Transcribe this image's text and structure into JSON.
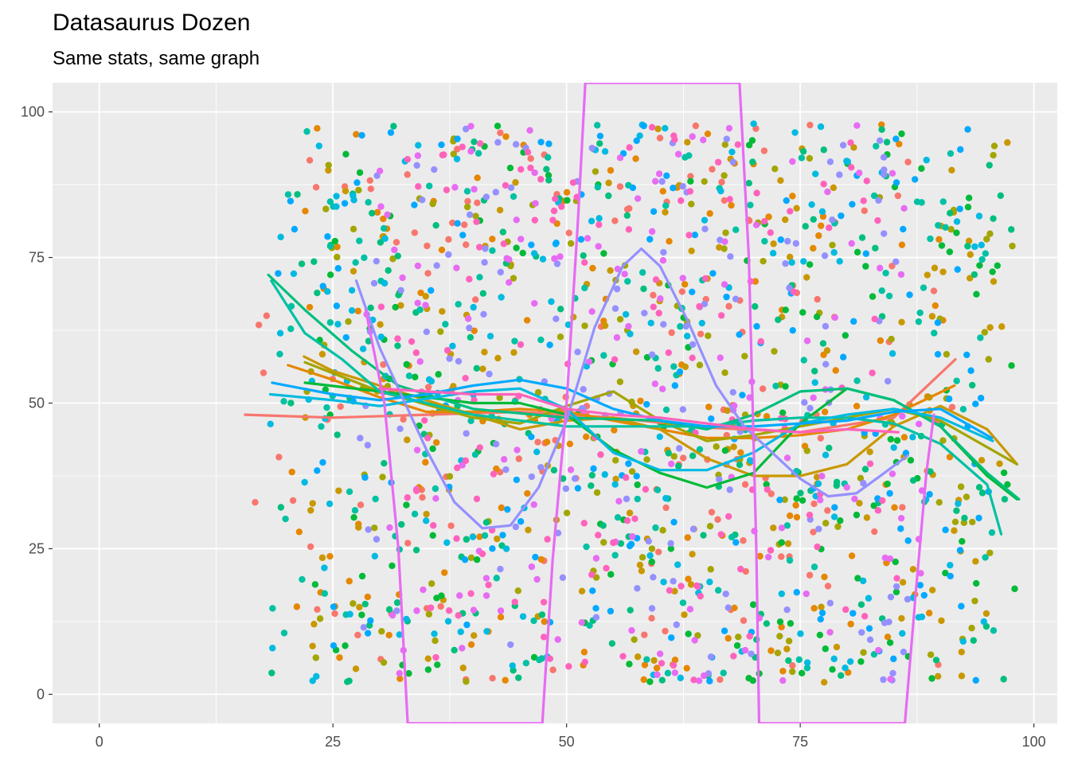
{
  "chart_data": {
    "type": "scatter",
    "title": "Datasaurus Dozen",
    "subtitle": "Same stats, same graph",
    "xlabel": "",
    "ylabel": "",
    "xlim": [
      -5,
      102.5
    ],
    "ylim": [
      -5,
      105
    ],
    "x_ticks": [
      0,
      25,
      50,
      75,
      100
    ],
    "y_ticks": [
      0,
      25,
      50,
      75,
      100
    ],
    "x_tick_labels": [
      "0",
      "25",
      "50",
      "75",
      "100"
    ],
    "y_tick_labels": [
      "0",
      "25",
      "50",
      "75",
      "100"
    ],
    "grid": true,
    "background": "#EBEBEB",
    "legend": "none",
    "smooth_lines": [
      {
        "color": "#F8766D",
        "points": [
          [
            15.6,
            48.0
          ],
          [
            25,
            47.5
          ],
          [
            35,
            48.0
          ],
          [
            45,
            48.5
          ],
          [
            55,
            47.5
          ],
          [
            65,
            45.8
          ],
          [
            75,
            45.0
          ],
          [
            85,
            47.5
          ],
          [
            91.6,
            57.5
          ]
        ]
      },
      {
        "color": "#E58700",
        "points": [
          [
            20.2,
            56.5
          ],
          [
            25,
            54.0
          ],
          [
            30,
            51.0
          ],
          [
            35,
            48.5
          ],
          [
            40,
            48.5
          ],
          [
            45,
            49.0
          ],
          [
            50,
            48.5
          ],
          [
            55,
            47.0
          ],
          [
            60,
            45.5
          ],
          [
            65,
            44.0
          ],
          [
            70,
            44.0
          ],
          [
            75,
            44.5
          ],
          [
            80,
            45.5
          ],
          [
            85,
            48.0
          ],
          [
            91.5,
            53.0
          ]
        ]
      },
      {
        "color": "#C99800",
        "points": [
          [
            21.9,
            58.0
          ],
          [
            25,
            55.5
          ],
          [
            30,
            53.0
          ],
          [
            35,
            50.5
          ],
          [
            40,
            48.0
          ],
          [
            45,
            45.5
          ],
          [
            50,
            47.0
          ],
          [
            55,
            47.5
          ],
          [
            60,
            45.5
          ],
          [
            65,
            40.5
          ],
          [
            70,
            37.5
          ],
          [
            75,
            37.5
          ],
          [
            80,
            39.5
          ],
          [
            85,
            46.0
          ],
          [
            90,
            49.5
          ],
          [
            95,
            45.5
          ],
          [
            98.2,
            39.5
          ]
        ]
      },
      {
        "color": "#A3A500",
        "points": [
          [
            22.0,
            57.0
          ],
          [
            30,
            52.0
          ],
          [
            40,
            47.5
          ],
          [
            45,
            46.5
          ],
          [
            50,
            49.5
          ],
          [
            55,
            52.0
          ],
          [
            60,
            47.0
          ],
          [
            65,
            43.5
          ],
          [
            70,
            44.5
          ],
          [
            75,
            46.0
          ],
          [
            80,
            47.5
          ],
          [
            85,
            49.0
          ],
          [
            90,
            47.0
          ],
          [
            98.2,
            39.5
          ]
        ]
      },
      {
        "color": "#00BA38",
        "points": [
          [
            22.0,
            53.5
          ],
          [
            30,
            52.0
          ],
          [
            40,
            50.0
          ],
          [
            45,
            50.0
          ],
          [
            50,
            48.0
          ],
          [
            55,
            42.0
          ],
          [
            60,
            38.0
          ],
          [
            65,
            35.5
          ],
          [
            70,
            38.0
          ],
          [
            75,
            46.5
          ],
          [
            80,
            52.5
          ],
          [
            85,
            50.5
          ],
          [
            90,
            46.0
          ],
          [
            95,
            37.5
          ],
          [
            98.2,
            33.5
          ]
        ]
      },
      {
        "color": "#00BF7D",
        "points": [
          [
            18.1,
            72.0
          ],
          [
            22,
            66.0
          ],
          [
            27,
            59.0
          ],
          [
            32,
            53.0
          ],
          [
            40,
            49.0
          ],
          [
            50,
            47.5
          ],
          [
            60,
            47.0
          ],
          [
            65,
            45.5
          ],
          [
            70,
            48.0
          ],
          [
            75,
            52.0
          ],
          [
            80,
            52.5
          ],
          [
            85,
            50.5
          ],
          [
            90,
            46.0
          ],
          [
            95,
            38.0
          ],
          [
            98.4,
            33.5
          ]
        ]
      },
      {
        "color": "#00C1A3",
        "points": [
          [
            18.4,
            71.0
          ],
          [
            22,
            62.0
          ],
          [
            26,
            57.5
          ],
          [
            30,
            52.0
          ],
          [
            40,
            48.0
          ],
          [
            50,
            46.0
          ],
          [
            60,
            46.0
          ],
          [
            65,
            46.0
          ],
          [
            70,
            47.0
          ],
          [
            75,
            47.5
          ],
          [
            80,
            47.5
          ],
          [
            85,
            46.5
          ],
          [
            90,
            43.0
          ],
          [
            95,
            36.0
          ],
          [
            96.5,
            27.5
          ]
        ]
      },
      {
        "color": "#00BAE0",
        "points": [
          [
            18.3,
            51.5
          ],
          [
            25,
            50.5
          ],
          [
            30,
            49.5
          ],
          [
            40,
            52.0
          ],
          [
            45,
            52.5
          ],
          [
            50,
            49.0
          ],
          [
            55,
            41.5
          ],
          [
            60,
            38.5
          ],
          [
            65,
            38.5
          ],
          [
            70,
            41.5
          ],
          [
            75,
            46.5
          ],
          [
            80,
            48.0
          ],
          [
            85,
            49.0
          ],
          [
            90,
            47.5
          ],
          [
            95.6,
            43.5
          ]
        ]
      },
      {
        "color": "#00A9FF",
        "points": [
          [
            18.5,
            53.5
          ],
          [
            25,
            51.5
          ],
          [
            30,
            50.5
          ],
          [
            35,
            51.5
          ],
          [
            40,
            53.0
          ],
          [
            45,
            54.0
          ],
          [
            50,
            52.5
          ],
          [
            55,
            49.0
          ],
          [
            60,
            47.0
          ],
          [
            65,
            46.0
          ],
          [
            70,
            46.0
          ],
          [
            75,
            46.5
          ],
          [
            80,
            47.0
          ],
          [
            85,
            48.5
          ],
          [
            90,
            49.0
          ],
          [
            95.5,
            44.0
          ]
        ]
      },
      {
        "color": "#9590FF",
        "points": [
          [
            27.5,
            71.0
          ],
          [
            30,
            59.5
          ],
          [
            32,
            52.5
          ],
          [
            35,
            42.0
          ],
          [
            38,
            33.0
          ],
          [
            41,
            28.5
          ],
          [
            44,
            29.0
          ],
          [
            47,
            35.5
          ],
          [
            50,
            47.0
          ],
          [
            53,
            63.0
          ],
          [
            56,
            73.5
          ],
          [
            58,
            76.5
          ],
          [
            60,
            73.5
          ],
          [
            63,
            64.0
          ],
          [
            66,
            53.0
          ],
          [
            69,
            46.0
          ],
          [
            72,
            41.5
          ],
          [
            75,
            37.0
          ],
          [
            78,
            34.0
          ],
          [
            81,
            34.5
          ],
          [
            84,
            38.0
          ],
          [
            86.5,
            41.0
          ]
        ]
      },
      {
        "color": "#E76BF3",
        "points": [
          [
            28.5,
            66.0
          ],
          [
            30.5,
            50.0
          ],
          [
            32.0,
            25.0
          ],
          [
            33.0,
            -5.0
          ],
          [
            47.4,
            -5.0
          ],
          [
            48.5,
            23.0
          ],
          [
            50.0,
            50.0
          ],
          [
            51.2,
            81.0
          ],
          [
            52.0,
            105.0
          ],
          [
            68.5,
            105.0
          ],
          [
            69.5,
            75.0
          ],
          [
            70.3,
            25.0
          ],
          [
            70.6,
            -5.0
          ],
          [
            86.2,
            -5.0
          ],
          [
            87.5,
            20.0
          ],
          [
            88.5,
            38.0
          ],
          [
            89.3,
            48.0
          ]
        ]
      },
      {
        "color": "#FF62BC",
        "points": [
          [
            30,
            52.5
          ],
          [
            40,
            51.5
          ],
          [
            45,
            51.5
          ],
          [
            50,
            49.0
          ],
          [
            55,
            48.0
          ],
          [
            60,
            47.5
          ],
          [
            65,
            46.5
          ],
          [
            70,
            45.5
          ],
          [
            75,
            45.0
          ],
          [
            80,
            45.5
          ],
          [
            85.5,
            45.0
          ]
        ]
      }
    ]
  }
}
